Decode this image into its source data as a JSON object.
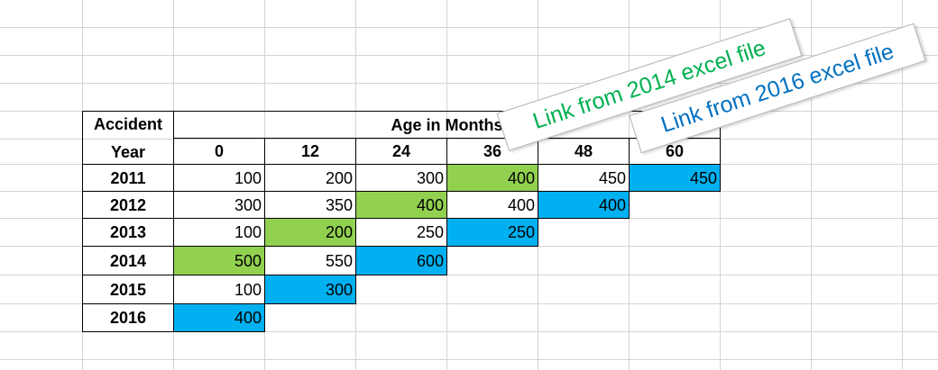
{
  "table": {
    "year_header_top": "Accident",
    "year_header_bottom": "Year",
    "age_header": "Age in Months",
    "ages": [
      "0",
      "12",
      "24",
      "36",
      "48",
      "60"
    ],
    "rows": [
      {
        "year": "2011",
        "values": [
          "100",
          "200",
          "300",
          "400",
          "450",
          "450"
        ]
      },
      {
        "year": "2012",
        "values": [
          "300",
          "350",
          "400",
          "400",
          "400",
          ""
        ]
      },
      {
        "year": "2013",
        "values": [
          "100",
          "200",
          "250",
          "250",
          "",
          ""
        ]
      },
      {
        "year": "2014",
        "values": [
          "500",
          "550",
          "600",
          "",
          "",
          ""
        ]
      },
      {
        "year": "2015",
        "values": [
          "100",
          "300",
          "",
          "",
          "",
          ""
        ]
      },
      {
        "year": "2016",
        "values": [
          "400",
          "",
          "",
          "",
          "",
          ""
        ]
      }
    ]
  },
  "colors": {
    "green_fill": "#92d050",
    "blue_fill": "#00b0f0",
    "note_2014_text": "#00b050",
    "note_2016_text": "#0070c0"
  },
  "notes": [
    {
      "text": "Link from 2014 excel file",
      "color": "#00b050"
    },
    {
      "text": "Link from 2016 excel file",
      "color": "#0070c0"
    }
  ]
}
